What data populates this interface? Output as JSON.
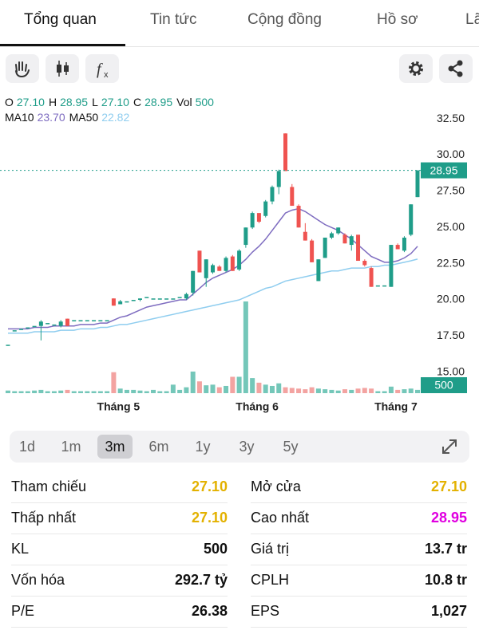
{
  "tabs": {
    "items": [
      "Tổng quan",
      "Tin tức",
      "Cộng đồng",
      "Hồ sơ",
      "Lã"
    ],
    "active": 0
  },
  "chart_header": {
    "ohlc": [
      {
        "label": "O",
        "value": "27.10"
      },
      {
        "label": "H",
        "value": "28.95"
      },
      {
        "label": "L",
        "value": "27.10"
      },
      {
        "label": "C",
        "value": "28.95"
      },
      {
        "label": "Vol",
        "value": "500"
      }
    ],
    "ma": [
      {
        "label": "MA10",
        "value": "23.70",
        "color": "#7e6cc0"
      },
      {
        "label": "MA50",
        "value": "22.82",
        "color": "#8fcdef"
      }
    ]
  },
  "chart_data": {
    "type": "candlestick",
    "categories": [
      null,
      null,
      null,
      null,
      null,
      null,
      null,
      null,
      null,
      null,
      null,
      null,
      null,
      null,
      null,
      null,
      "Tháng 5",
      null,
      null,
      null,
      null,
      null,
      null,
      null,
      null,
      null,
      null,
      null,
      null,
      null,
      null,
      null,
      null,
      null,
      null,
      null,
      null,
      "Tháng 6",
      null,
      null,
      null,
      null,
      null,
      null,
      null,
      null,
      null,
      null,
      null,
      null,
      null,
      null,
      null,
      null,
      null,
      null,
      null,
      null,
      "Tháng 7",
      null,
      null,
      null,
      null
    ],
    "open": [
      16.9,
      17.9,
      18.0,
      18.1,
      18.2,
      18.2,
      18.4,
      18.3,
      18.2,
      18.7,
      18.6,
      18.6,
      18.6,
      18.6,
      18.6,
      18.6,
      20.1,
      19.7,
      19.9,
      20.0,
      20.0,
      20.2,
      20.1,
      20.1,
      20.1,
      20.1,
      20.2,
      20.1,
      20.5,
      23.4,
      21.5,
      21.9,
      22.3,
      22.0,
      23.0,
      22.1,
      23.8,
      25.0,
      26.0,
      25.8,
      26.8,
      27.8,
      31.5,
      27.8,
      26.5,
      24.7,
      24.1,
      21.3,
      22.9,
      24.3,
      24.6,
      24.5,
      23.8,
      24.5,
      22.7,
      22.2,
      21.0,
      21.0,
      20.9,
      23.8,
      23.4,
      24.5,
      27.1
    ],
    "high": [
      16.9,
      17.9,
      18.0,
      18.1,
      18.2,
      18.6,
      18.4,
      18.3,
      18.6,
      18.7,
      18.6,
      18.6,
      18.6,
      18.6,
      18.6,
      18.6,
      20.1,
      20.0,
      19.9,
      20.0,
      20.1,
      20.2,
      20.1,
      20.1,
      20.1,
      20.1,
      20.2,
      20.5,
      22.0,
      23.4,
      22.8,
      22.5,
      22.4,
      23.0,
      23.1,
      23.5,
      25.0,
      26.1,
      26.0,
      26.9,
      27.9,
      29.0,
      31.5,
      28.0,
      26.6,
      25.3,
      24.2,
      22.8,
      24.3,
      24.7,
      25.0,
      24.6,
      24.5,
      24.5,
      22.8,
      22.3,
      21.0,
      21.0,
      23.8,
      23.9,
      24.4,
      26.6,
      28.95
    ],
    "low": [
      16.9,
      17.9,
      18.0,
      18.1,
      18.2,
      17.2,
      18.4,
      18.3,
      18.1,
      18.2,
      18.6,
      18.6,
      18.6,
      18.6,
      18.6,
      18.6,
      19.6,
      19.7,
      19.9,
      20.0,
      19.9,
      20.2,
      20.1,
      20.1,
      20.1,
      20.1,
      20.2,
      20.0,
      20.3,
      21.9,
      20.9,
      21.8,
      22.0,
      21.9,
      22.0,
      22.0,
      23.6,
      24.9,
      25.3,
      25.7,
      26.6,
      27.3,
      28.9,
      26.5,
      25.0,
      24.1,
      22.6,
      21.3,
      22.9,
      24.2,
      24.5,
      23.9,
      23.4,
      22.7,
      22.3,
      20.9,
      21.0,
      21.0,
      20.9,
      23.5,
      23.3,
      24.4,
      27.1
    ],
    "close": [
      16.9,
      17.9,
      18.0,
      18.1,
      18.2,
      18.5,
      18.4,
      18.3,
      18.5,
      18.2,
      18.6,
      18.6,
      18.6,
      18.6,
      18.6,
      18.6,
      19.6,
      19.9,
      19.9,
      20.0,
      20.1,
      20.2,
      20.1,
      20.1,
      20.1,
      20.1,
      20.2,
      20.4,
      22.0,
      21.9,
      22.8,
      22.4,
      22.0,
      22.9,
      22.0,
      23.4,
      25.0,
      26.0,
      25.4,
      26.8,
      27.8,
      28.9,
      28.9,
      26.5,
      25.0,
      24.1,
      22.6,
      22.8,
      24.3,
      24.6,
      25.0,
      23.9,
      24.4,
      22.7,
      22.4,
      20.9,
      21.0,
      21.0,
      23.8,
      23.5,
      24.3,
      26.6,
      28.95
    ],
    "volume": [
      400,
      300,
      300,
      300,
      400,
      500,
      300,
      300,
      400,
      500,
      300,
      300,
      300,
      300,
      300,
      300,
      3200,
      700,
      500,
      500,
      400,
      300,
      500,
      300,
      300,
      1300,
      500,
      900,
      3300,
      1800,
      1200,
      1300,
      900,
      1100,
      2500,
      2500,
      14000,
      2300,
      1600,
      1300,
      1100,
      1500,
      900,
      800,
      700,
      600,
      900,
      700,
      600,
      500,
      400,
      600,
      500,
      700,
      800,
      700,
      300,
      300,
      1000,
      500,
      600,
      700,
      500
    ],
    "ma10": [
      18.0,
      18.0,
      18.0,
      18.0,
      18.1,
      18.1,
      18.1,
      18.2,
      18.2,
      18.2,
      18.2,
      18.3,
      18.3,
      18.3,
      18.4,
      18.4,
      18.6,
      18.8,
      18.9,
      19.1,
      19.3,
      19.5,
      19.6,
      19.7,
      19.8,
      19.9,
      20.0,
      20.0,
      20.4,
      20.8,
      21.2,
      21.5,
      21.7,
      21.9,
      22.1,
      22.4,
      22.8,
      23.3,
      23.7,
      24.2,
      24.8,
      25.4,
      26.0,
      26.2,
      26.3,
      26.1,
      25.8,
      25.5,
      25.2,
      25.0,
      24.8,
      24.5,
      24.2,
      23.8,
      23.4,
      23.0,
      22.8,
      22.6,
      22.6,
      22.7,
      22.9,
      23.2,
      23.7
    ],
    "ma50": [
      17.7,
      17.7,
      17.7,
      17.7,
      17.8,
      17.8,
      17.8,
      17.8,
      17.9,
      17.9,
      17.9,
      18.0,
      18.0,
      18.0,
      18.1,
      18.1,
      18.2,
      18.3,
      18.3,
      18.4,
      18.5,
      18.6,
      18.7,
      18.8,
      18.9,
      19.0,
      19.1,
      19.2,
      19.3,
      19.4,
      19.5,
      19.6,
      19.7,
      19.8,
      19.9,
      20.0,
      20.2,
      20.4,
      20.6,
      20.8,
      20.9,
      21.1,
      21.3,
      21.4,
      21.5,
      21.6,
      21.7,
      21.8,
      21.9,
      22.0,
      22.0,
      22.1,
      22.2,
      22.2,
      22.2,
      22.3,
      22.3,
      22.4,
      22.4,
      22.5,
      22.6,
      22.7,
      22.82
    ],
    "up_color": "#1f9d89",
    "down_color": "#ef5350",
    "up_volume_color": "#74c7b9",
    "down_volume_color": "#f3a3a1",
    "ylim": [
      13.5,
      33.5
    ],
    "yticks": [
      {
        "value": 15,
        "label": "15.00"
      },
      {
        "value": 17.5,
        "label": "17.50"
      },
      {
        "value": 20,
        "label": "20.00"
      },
      {
        "value": 22.5,
        "label": "22.50"
      },
      {
        "value": 25,
        "label": "25.00"
      },
      {
        "value": 27.5,
        "label": "27.50"
      },
      {
        "value": 30,
        "label": "30.00"
      },
      {
        "value": 32.5,
        "label": "32.50"
      }
    ],
    "price_tag": "28.95",
    "volume_tag": "500"
  },
  "timeframes": {
    "options": [
      "1d",
      "1m",
      "3m",
      "6m",
      "1y",
      "3y",
      "5y"
    ],
    "selected": 2
  },
  "stats": {
    "left": [
      {
        "label": "Tham chiếu",
        "value": "27.10",
        "color": "#e3b100"
      },
      {
        "label": "Thấp nhất",
        "value": "27.10",
        "color": "#e3b100"
      },
      {
        "label": "KL",
        "value": "500",
        "color": "#111111"
      },
      {
        "label": "Vốn hóa",
        "value": "292.7 tỷ",
        "color": "#111111"
      },
      {
        "label": "P/E",
        "value": "26.38",
        "color": "#111111"
      }
    ],
    "right": [
      {
        "label": "Mở cửa",
        "value": "27.10",
        "color": "#e3b100"
      },
      {
        "label": "Cao nhất",
        "value": "28.95",
        "color": "#e000e0"
      },
      {
        "label": "Giá trị",
        "value": "13.7 tr",
        "color": "#111111"
      },
      {
        "label": "CPLH",
        "value": "10.8 tr",
        "color": "#111111"
      },
      {
        "label": "EPS",
        "value": "1,027",
        "color": "#111111"
      }
    ]
  }
}
